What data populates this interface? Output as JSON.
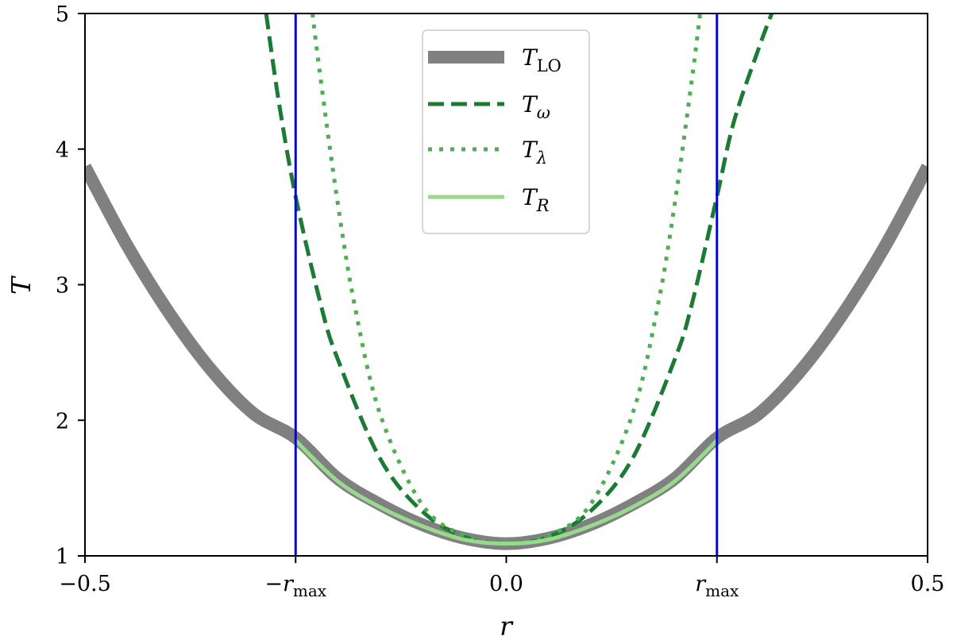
{
  "chart_data": {
    "type": "line",
    "xlabel": "r",
    "ylabel": "T",
    "xlim": [
      -0.5,
      0.5
    ],
    "ylim": [
      1,
      5
    ],
    "grid": false,
    "legend_position": "top-center",
    "r_max": 0.25,
    "x_ticks": [
      {
        "value": -0.5,
        "label": "−0.5"
      },
      {
        "value": -0.25,
        "label": "−r",
        "sub": "max"
      },
      {
        "value": 0.0,
        "label": "0.0"
      },
      {
        "value": 0.25,
        "label": "r",
        "sub": "max"
      },
      {
        "value": 0.5,
        "label": "0.5"
      }
    ],
    "y_ticks": [
      1,
      2,
      3,
      4,
      5
    ],
    "vertical_lines": [
      {
        "x": -0.25,
        "color": "#0000ff"
      },
      {
        "x": 0.25,
        "color": "#0000ff"
      }
    ],
    "series": [
      {
        "name": "T",
        "name_sub": "LO",
        "sub_style": "upright",
        "style": "solid-thick",
        "color": "#808080",
        "x": [
          -0.5,
          -0.45,
          -0.4,
          -0.35,
          -0.3,
          -0.25,
          -0.2,
          -0.15,
          -0.1,
          -0.05,
          0.0,
          0.05,
          0.1,
          0.15,
          0.2,
          0.25,
          0.3,
          0.35,
          0.4,
          0.45,
          0.5
        ],
        "y": [
          3.87,
          3.29,
          2.79,
          2.37,
          2.05,
          1.87,
          1.57,
          1.38,
          1.23,
          1.13,
          1.09,
          1.13,
          1.23,
          1.38,
          1.57,
          1.87,
          2.05,
          2.37,
          2.79,
          3.29,
          3.87
        ]
      },
      {
        "name": "T",
        "name_sub": "ω",
        "sub_style": "italic",
        "style": "dashed",
        "color": "#1b7a33",
        "x": [
          -0.285,
          -0.27,
          -0.25,
          -0.22,
          -0.2,
          -0.15,
          -0.1,
          -0.05,
          0.0,
          0.05,
          0.1,
          0.15,
          0.2,
          0.22,
          0.25,
          0.27,
          0.3,
          0.315
        ],
        "y": [
          5.0,
          4.35,
          3.65,
          2.85,
          2.45,
          1.72,
          1.33,
          1.14,
          1.09,
          1.14,
          1.33,
          1.72,
          2.45,
          2.85,
          3.65,
          4.2,
          4.75,
          5.0
        ]
      },
      {
        "name": "T",
        "name_sub": "λ",
        "sub_style": "italic",
        "style": "dotted",
        "color": "#4caf50",
        "x": [
          -0.23,
          -0.22,
          -0.2,
          -0.18,
          -0.15,
          -0.1,
          -0.05,
          0.0,
          0.05,
          0.1,
          0.15,
          0.18,
          0.2,
          0.22,
          0.23
        ],
        "y": [
          5.0,
          4.5,
          3.6,
          2.85,
          2.05,
          1.38,
          1.15,
          1.1,
          1.15,
          1.38,
          2.05,
          2.85,
          3.6,
          4.5,
          5.0
        ]
      },
      {
        "name": "T",
        "name_sub": "R",
        "sub_style": "italic",
        "style": "solid",
        "color": "#98d98e",
        "x": [
          -0.25,
          -0.2,
          -0.15,
          -0.1,
          -0.05,
          0.0,
          0.05,
          0.1,
          0.15,
          0.2,
          0.25
        ],
        "y": [
          1.85,
          1.55,
          1.36,
          1.22,
          1.12,
          1.09,
          1.12,
          1.22,
          1.36,
          1.55,
          1.85
        ]
      }
    ]
  }
}
